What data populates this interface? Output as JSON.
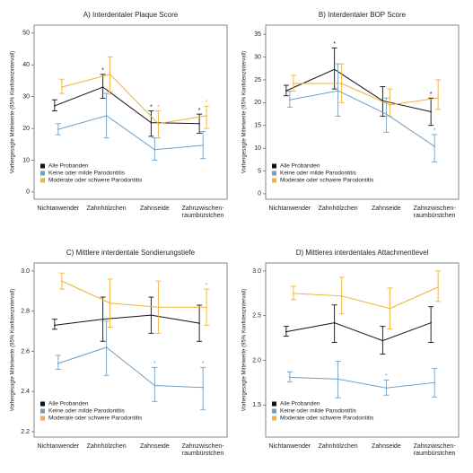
{
  "chart_data": [
    {
      "type": "line",
      "title": "A) Interdentaler Plaque Score",
      "ylabel": "Vorhergesagte Mittelwerte (95% Konfidenzintervall)",
      "categories": [
        [
          "Nichtanwender"
        ],
        [
          "Zahnhölzchen"
        ],
        [
          "Zahnseide"
        ],
        [
          "Zahnzwischen-",
          "raumbürstchen"
        ]
      ],
      "ylim": [
        -2.3,
        52.5
      ],
      "yticks": [
        0,
        10,
        20,
        30,
        40,
        50
      ],
      "legend": "lower left",
      "significance_marker": "*",
      "series": [
        {
          "name": "Alle Probanden",
          "color": "#111111",
          "values": [
            27.1,
            33,
            21.8,
            21.5
          ],
          "ci_low": [
            25.5,
            29.5,
            17.5,
            18.5
          ],
          "ci_high": [
            29,
            37,
            25.5,
            24.5
          ],
          "significant": [
            false,
            true,
            true,
            true
          ]
        },
        {
          "name": "Keine oder milde Parodontitis",
          "color": "#6f9fc4",
          "values": [
            19.7,
            24,
            13.3,
            14.7
          ],
          "ci_low": [
            18,
            17,
            10,
            10.5
          ],
          "ci_high": [
            21.5,
            31,
            17,
            19
          ],
          "significant": [
            false,
            false,
            false,
            false
          ]
        },
        {
          "name": "Moderate oder schwere Parodontitis",
          "color": "#f2b035",
          "values": [
            33,
            37,
            21.5,
            24
          ],
          "ci_low": [
            31,
            31.5,
            17,
            20
          ],
          "ci_high": [
            35.5,
            42.5,
            25.5,
            27
          ],
          "significant": [
            false,
            false,
            true,
            true
          ]
        }
      ]
    },
    {
      "type": "line",
      "title": "B) Interdentaler BOP Score",
      "ylabel": "Vorhergesagte Mittelwerte (95% Konfidenzintervall)",
      "categories": [
        [
          "Nichtanwender"
        ],
        [
          "Zahnhölzchen"
        ],
        [
          "Zahnseide"
        ],
        [
          "Zahnzwischen-",
          "raumbürstchen"
        ]
      ],
      "ylim": [
        -1.2,
        37
      ],
      "yticks": [
        0,
        5,
        10,
        15,
        20,
        25,
        30,
        35
      ],
      "legend": "lower left",
      "significance_marker": "*",
      "series": [
        {
          "name": "Alle Probanden",
          "color": "#111111",
          "values": [
            22.6,
            27.3,
            20.4,
            18
          ],
          "ci_low": [
            21.5,
            23,
            17,
            15
          ],
          "ci_high": [
            23.8,
            32,
            23.5,
            21
          ],
          "significant": [
            false,
            true,
            false,
            true
          ]
        },
        {
          "name": "Keine oder milde Parodontitis",
          "color": "#6f9fc4",
          "values": [
            20.6,
            22.6,
            17.5,
            10.4
          ],
          "ci_low": [
            19,
            17,
            13.5,
            7
          ],
          "ci_high": [
            22.5,
            28.5,
            21,
            13
          ],
          "significant": [
            false,
            false,
            false,
            true
          ]
        },
        {
          "name": "Moderate oder schwere Parodontitis",
          "color": "#f2b035",
          "values": [
            24.2,
            24.2,
            19.5,
            21
          ],
          "ci_low": [
            22.5,
            20,
            17,
            18.5
          ],
          "ci_high": [
            26,
            28.5,
            23,
            25
          ],
          "significant": [
            false,
            false,
            false,
            false
          ]
        }
      ]
    },
    {
      "type": "line",
      "title": "C) Mittlere interdentale Sondierungstiefe",
      "ylabel": "Vorhergesagte Mittelwerte (95% Konfidenzintervall)",
      "categories": [
        [
          "Nichtanwender"
        ],
        [
          "Zahnhölzchen"
        ],
        [
          "Zahnseide"
        ],
        [
          "Zahnzwischen-",
          "raumbürstchen"
        ]
      ],
      "ylim": [
        2.173,
        3.04
      ],
      "yticks": [
        2.2,
        2.4,
        2.6,
        2.8,
        {
          "value": 3,
          "label": "3.0"
        }
      ],
      "legend": "lower left",
      "significance_marker": "*",
      "series": [
        {
          "name": "Alle Probanden",
          "color": "#111111",
          "values": [
            2.73,
            2.76,
            2.78,
            2.74
          ],
          "ci_low": [
            2.71,
            2.65,
            2.69,
            2.65
          ],
          "ci_high": [
            2.76,
            2.87,
            2.87,
            2.83
          ],
          "significant": [
            false,
            false,
            false,
            false
          ]
        },
        {
          "name": "Keine oder milde Parodontitis",
          "color": "#6f9fc4",
          "values": [
            2.54,
            2.62,
            2.43,
            2.42
          ],
          "ci_low": [
            2.51,
            2.48,
            2.35,
            2.31
          ],
          "ci_high": [
            2.58,
            2.75,
            2.52,
            2.52
          ],
          "significant": [
            false,
            false,
            true,
            true
          ]
        },
        {
          "name": "Moderate oder schwere Parodontitis",
          "color": "#f2b035",
          "values": [
            2.95,
            2.84,
            2.82,
            2.82
          ],
          "ci_low": [
            2.91,
            2.72,
            2.69,
            2.73
          ],
          "ci_high": [
            2.99,
            2.96,
            2.95,
            2.91
          ],
          "significant": [
            false,
            false,
            false,
            true
          ]
        }
      ]
    },
    {
      "type": "line",
      "title": "D) Mittleres interdentales Attachmentlevel",
      "ylabel": "Vorhergesagte Mittelwerte (95% Konfidenzintervall)",
      "categories": [
        [
          "Nichtanwender"
        ],
        [
          "Zahnhölzchen"
        ],
        [
          "Zahnseide"
        ],
        [
          "Zahnzwischen-",
          "raumbürstchen"
        ]
      ],
      "ylim": [
        1.14,
        3.09
      ],
      "yticks": [
        1.5,
        {
          "value": 2,
          "label": "2.0"
        },
        2.5,
        {
          "value": 3,
          "label": "3.0"
        }
      ],
      "legend": "lower left",
      "significance_marker": "*",
      "series": [
        {
          "name": "Alle Probanden",
          "color": "#111111",
          "values": [
            2.32,
            2.42,
            2.22,
            2.42
          ],
          "ci_low": [
            2.27,
            2.2,
            2.07,
            2.2
          ],
          "ci_high": [
            2.38,
            2.62,
            2.38,
            2.6
          ],
          "significant": [
            false,
            false,
            false,
            false
          ]
        },
        {
          "name": "Keine oder milde Parodontitis",
          "color": "#6f9fc4",
          "values": [
            1.81,
            1.79,
            1.69,
            1.75
          ],
          "ci_low": [
            1.76,
            1.58,
            1.61,
            1.59
          ],
          "ci_high": [
            1.87,
            1.99,
            1.78,
            1.91
          ],
          "significant": [
            false,
            false,
            true,
            false
          ]
        },
        {
          "name": "Moderate oder schwere Parodontitis",
          "color": "#f2b035",
          "values": [
            2.75,
            2.72,
            2.58,
            2.82
          ],
          "ci_low": [
            2.68,
            2.52,
            2.35,
            2.66
          ],
          "ci_high": [
            2.83,
            2.93,
            2.81,
            3.0
          ],
          "significant": [
            false,
            false,
            false,
            false
          ]
        }
      ]
    }
  ]
}
